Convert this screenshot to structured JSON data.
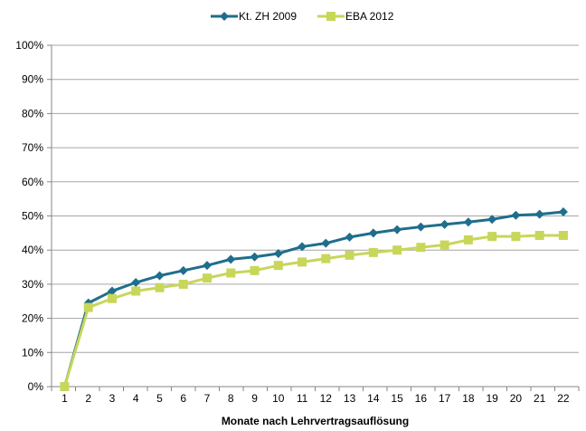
{
  "chart_data": {
    "type": "line",
    "title": "",
    "xlabel": "Monate nach Lehrvertragsauflösung",
    "ylabel": "",
    "x": [
      1,
      2,
      3,
      4,
      5,
      6,
      7,
      8,
      9,
      10,
      11,
      12,
      13,
      14,
      15,
      16,
      17,
      18,
      19,
      20,
      21,
      22
    ],
    "x_tick_labels": [
      "1",
      "2",
      "3",
      "4",
      "5",
      "6",
      "7",
      "8",
      "9",
      "10",
      "11",
      "12",
      "13",
      "14",
      "15",
      "16",
      "17",
      "18",
      "19",
      "20",
      "21",
      "22"
    ],
    "ylim": [
      0,
      1
    ],
    "y_ticks": [
      0,
      0.1,
      0.2,
      0.3,
      0.4,
      0.5,
      0.6,
      0.7,
      0.8,
      0.9,
      1.0
    ],
    "y_tick_labels": [
      "0%",
      "10%",
      "20%",
      "30%",
      "40%",
      "50%",
      "60%",
      "70%",
      "80%",
      "90%",
      "100%"
    ],
    "grid": "horizontal",
    "legend_position": "top-center",
    "series": [
      {
        "name": "Kt. ZH 2009",
        "color": "#1f6e8c",
        "marker": "diamond",
        "values": [
          0.0,
          0.245,
          0.28,
          0.305,
          0.325,
          0.34,
          0.355,
          0.373,
          0.38,
          0.39,
          0.41,
          0.42,
          0.438,
          0.45,
          0.46,
          0.468,
          0.475,
          0.482,
          0.49,
          0.502,
          0.505,
          0.512
        ]
      },
      {
        "name": "EBA 2012",
        "color": "#c8d65a",
        "marker": "square",
        "values": [
          0.0,
          0.232,
          0.258,
          0.28,
          0.29,
          0.3,
          0.318,
          0.333,
          0.34,
          0.355,
          0.365,
          0.375,
          0.385,
          0.393,
          0.4,
          0.408,
          0.415,
          0.43,
          0.44,
          0.44,
          0.443,
          0.443
        ]
      }
    ]
  }
}
